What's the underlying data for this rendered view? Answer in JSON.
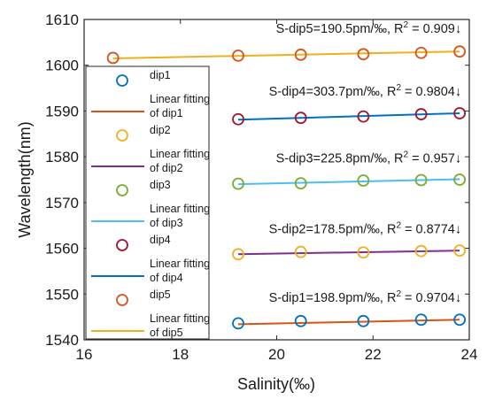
{
  "chart_data": {
    "type": "scatter",
    "xlabel": "Salinity(‰)",
    "ylabel": "Wavelength(nm)",
    "xlim": [
      16,
      24
    ],
    "ylim": [
      1540,
      1610
    ],
    "xticks": [
      "16",
      "18",
      "20",
      "22",
      "24"
    ],
    "yticks": [
      "1540",
      "1550",
      "1560",
      "1570",
      "1580",
      "1590",
      "1600",
      "1610"
    ],
    "grid": false,
    "legend_placement": "left",
    "x": [
      19.2,
      20.5,
      21.8,
      23.0,
      23.8
    ],
    "series": [
      {
        "name": "dip1",
        "kind": "scatter",
        "color": "#0072BD",
        "x": [
          19.2,
          20.5,
          21.8,
          23.0,
          23.8
        ],
        "values": [
          1543.6,
          1544.1,
          1544.1,
          1544.4,
          1544.4
        ]
      },
      {
        "name": "Linear fitting of dip1",
        "kind": "line",
        "color": "#D95319",
        "x": [
          19.2,
          23.8
        ],
        "values": [
          1543.4,
          1544.4
        ]
      },
      {
        "name": "dip2",
        "kind": "scatter",
        "color": "#EDB120",
        "x": [
          19.2,
          20.5,
          21.8,
          23.0,
          23.8
        ],
        "values": [
          1558.7,
          1559.2,
          1559.1,
          1559.4,
          1559.5
        ]
      },
      {
        "name": "Linear fitting of dip2",
        "kind": "line",
        "color": "#7E2F8E",
        "x": [
          19.2,
          23.8
        ],
        "values": [
          1558.7,
          1559.5
        ]
      },
      {
        "name": "dip3",
        "kind": "scatter",
        "color": "#77AC30",
        "x": [
          19.2,
          20.5,
          21.8,
          23.0,
          23.8
        ],
        "values": [
          1574.1,
          1574.2,
          1574.8,
          1574.9,
          1575.0
        ]
      },
      {
        "name": "Linear fitting of dip3",
        "kind": "line",
        "color": "#4DBEEE",
        "x": [
          19.2,
          23.8
        ],
        "values": [
          1574.0,
          1575.1
        ]
      },
      {
        "name": "dip4",
        "kind": "scatter",
        "color": "#A2142F",
        "x": [
          19.2,
          20.5,
          21.8,
          23.0,
          23.8
        ],
        "values": [
          1588.2,
          1588.5,
          1588.8,
          1589.3,
          1589.5
        ]
      },
      {
        "name": "Linear fitting of dip4",
        "kind": "line",
        "color": "#0072BD",
        "x": [
          19.2,
          23.8
        ],
        "values": [
          1588.1,
          1589.5
        ]
      },
      {
        "name": "dip5",
        "kind": "scatter",
        "color": "#D95319",
        "x": [
          16.6,
          19.2,
          20.5,
          21.8,
          23.0,
          23.8
        ],
        "values": [
          1601.6,
          1602.1,
          1602.3,
          1602.4,
          1602.7,
          1603.0
        ]
      },
      {
        "name": "Linear fitting of dip5",
        "kind": "line",
        "color": "#EDB120",
        "x": [
          16.6,
          23.8
        ],
        "values": [
          1601.5,
          1603.0
        ]
      }
    ],
    "annotations": [
      {
        "pre": "S-dip5=190.5pm/‰, R",
        "sup": "2",
        "post": " = 0.909↓",
        "x": 23.8,
        "y": 1607.1
      },
      {
        "pre": "S-dip4=303.7pm/‰, R",
        "sup": "2",
        "post": " = 0.9804↓",
        "x": 23.8,
        "y": 1593.4
      },
      {
        "pre": "S-dip3=225.8pm/‰, R",
        "sup": "2",
        "post": " = 0.957↓",
        "x": 23.8,
        "y": 1578.8
      },
      {
        "pre": "S-dip2=178.5pm/‰, R",
        "sup": "2",
        "post": " = 0.8774↓",
        "x": 23.8,
        "y": 1563.3
      },
      {
        "pre": "S-dip1=198.9pm/‰, R",
        "sup": "2",
        "post": " = 0.9704↓",
        "x": 23.8,
        "y": 1548.3
      }
    ],
    "legend": [
      {
        "kind": "marker",
        "color": "#0072BD",
        "lines": [
          "dip1"
        ]
      },
      {
        "kind": "line",
        "color": "#D95319",
        "lines": [
          "Linear fitting",
          "of dip1"
        ]
      },
      {
        "kind": "marker",
        "color": "#EDB120",
        "lines": [
          "dip2"
        ]
      },
      {
        "kind": "line",
        "color": "#7E2F8E",
        "lines": [
          "Linear fitting",
          "of dip2"
        ]
      },
      {
        "kind": "marker",
        "color": "#77AC30",
        "lines": [
          "dip3"
        ]
      },
      {
        "kind": "line",
        "color": "#4DBEEE",
        "lines": [
          "Linear fitting",
          "of dip3"
        ]
      },
      {
        "kind": "marker",
        "color": "#A2142F",
        "lines": [
          "dip4"
        ]
      },
      {
        "kind": "line",
        "color": "#0072BD",
        "lines": [
          "Linear fitting",
          "of dip4"
        ]
      },
      {
        "kind": "marker",
        "color": "#D95319",
        "lines": [
          "dip5"
        ]
      },
      {
        "kind": "line",
        "color": "#EDB120",
        "lines": [
          "Linear fitting",
          "of dip5"
        ]
      }
    ]
  }
}
